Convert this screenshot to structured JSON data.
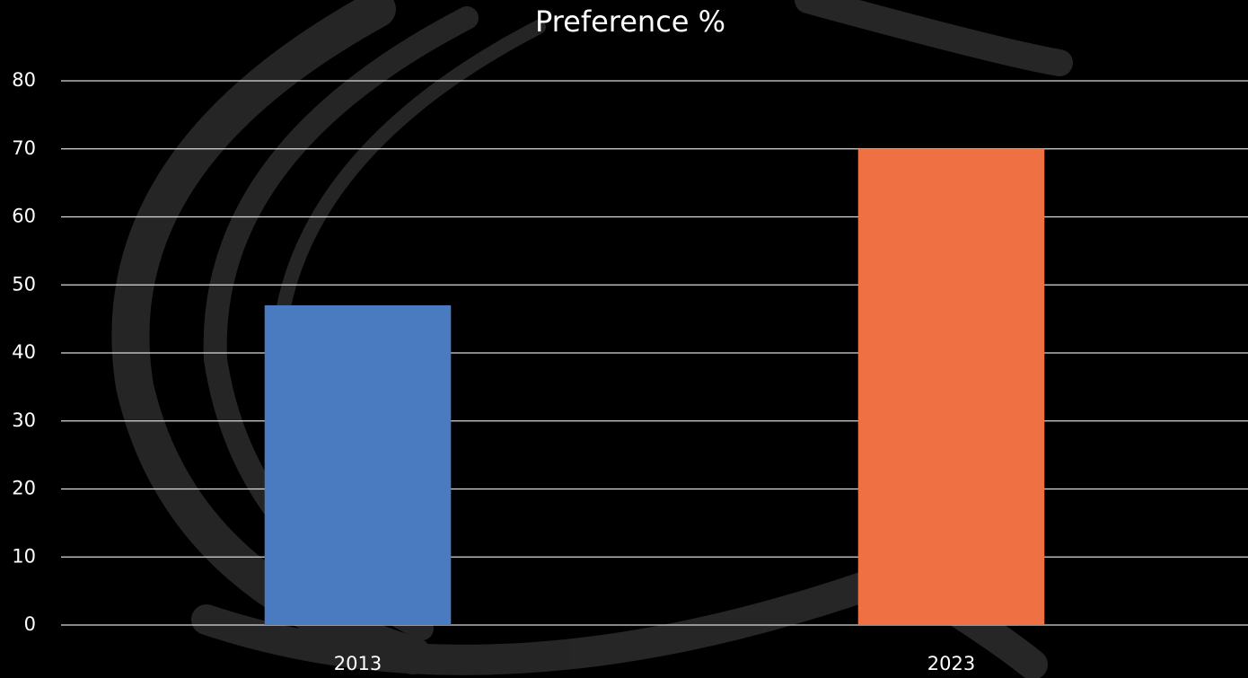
{
  "chart_data": {
    "type": "bar",
    "title": "Preference %",
    "categories": [
      "2013",
      "2023"
    ],
    "values": [
      47,
      70
    ],
    "colors": [
      "#4a7bc0",
      "#ee7043"
    ],
    "ylim": [
      0,
      80
    ],
    "yticks": [
      0,
      10,
      20,
      30,
      40,
      50,
      60,
      70,
      80
    ],
    "grid": true
  }
}
